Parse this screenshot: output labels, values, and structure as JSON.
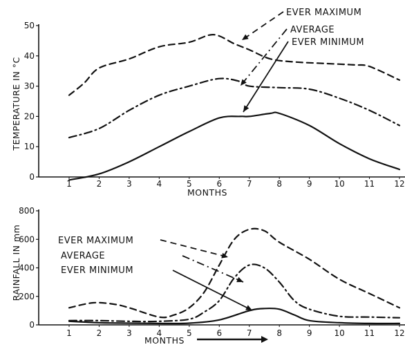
{
  "chart_data": [
    {
      "type": "line",
      "xlabel": "MONTHS",
      "ylabel": "TEMPERATURE IN °C",
      "xlim": [
        1,
        12
      ],
      "ylim": [
        0,
        50
      ],
      "x_ticks": [
        "1",
        "2",
        "3",
        "4",
        "5",
        "6",
        "7",
        "8",
        "9",
        "10",
        "11",
        "12"
      ],
      "y_ticks": [
        "0",
        "10",
        "20",
        "30",
        "40",
        "50"
      ],
      "grid": false,
      "series": [
        {
          "name": "EVER MAXIMUM",
          "style": "dashed",
          "points": [
            [
              1,
              27
            ],
            [
              1.5,
              31
            ],
            [
              2,
              36
            ],
            [
              3,
              39
            ],
            [
              4,
              43
            ],
            [
              5,
              44.5
            ],
            [
              5.8,
              47
            ],
            [
              6.5,
              44
            ],
            [
              7,
              42
            ],
            [
              7.7,
              39
            ],
            [
              8.5,
              38
            ],
            [
              9.5,
              37.5
            ],
            [
              10.5,
              37
            ],
            [
              11,
              36.5
            ],
            [
              12,
              32
            ]
          ]
        },
        {
          "name": "AVERAGE",
          "style": "dashdot",
          "points": [
            [
              1,
              13
            ],
            [
              2,
              16
            ],
            [
              3,
              22
            ],
            [
              4,
              27
            ],
            [
              5,
              30
            ],
            [
              6,
              32.5
            ],
            [
              6.7,
              31.5
            ],
            [
              7,
              30
            ],
            [
              8,
              29.5
            ],
            [
              9,
              29
            ],
            [
              10,
              26
            ],
            [
              11,
              22
            ],
            [
              12,
              17
            ]
          ]
        },
        {
          "name": "EVER MINIMUM",
          "style": "solid",
          "points": [
            [
              1,
              -1
            ],
            [
              2,
              1
            ],
            [
              3,
              5
            ],
            [
              4,
              10
            ],
            [
              5,
              15
            ],
            [
              6,
              19.5
            ],
            [
              6.7,
              20
            ],
            [
              7,
              20
            ],
            [
              7.7,
              21
            ],
            [
              8,
              21
            ],
            [
              9,
              17
            ],
            [
              10,
              11
            ],
            [
              11,
              6
            ],
            [
              12,
              2.5
            ]
          ]
        }
      ]
    },
    {
      "type": "line",
      "xlabel": "MONTHS",
      "ylabel": "RAINFALL IN mm",
      "xlim": [
        1,
        12
      ],
      "ylim": [
        0,
        800
      ],
      "x_ticks": [
        "1",
        "2",
        "3",
        "4",
        "5",
        "6",
        "7",
        "8",
        "9",
        "10",
        "11",
        "12"
      ],
      "y_ticks": [
        "0",
        "200",
        "400",
        "600",
        "800"
      ],
      "grid": false,
      "series": [
        {
          "name": "EVER MAXIMUM",
          "style": "dashed",
          "points": [
            [
              1,
              120
            ],
            [
              1.8,
              155
            ],
            [
              2.5,
              145
            ],
            [
              3,
              120
            ],
            [
              4,
              55
            ],
            [
              4.5,
              70
            ],
            [
              5,
              120
            ],
            [
              5.5,
              230
            ],
            [
              6,
              420
            ],
            [
              6.5,
              600
            ],
            [
              7,
              670
            ],
            [
              7.5,
              660
            ],
            [
              8,
              580
            ],
            [
              9,
              460
            ],
            [
              10,
              320
            ],
            [
              11,
              220
            ],
            [
              12,
              120
            ]
          ]
        },
        {
          "name": "AVERAGE",
          "style": "dashdot",
          "points": [
            [
              1,
              30
            ],
            [
              2,
              30
            ],
            [
              3,
              25
            ],
            [
              4,
              25
            ],
            [
              5,
              40
            ],
            [
              5.5,
              90
            ],
            [
              6,
              170
            ],
            [
              6.5,
              330
            ],
            [
              7,
              420
            ],
            [
              7.5,
              400
            ],
            [
              8,
              300
            ],
            [
              8.5,
              170
            ],
            [
              9,
              110
            ],
            [
              10,
              60
            ],
            [
              11,
              55
            ],
            [
              12,
              50
            ]
          ]
        },
        {
          "name": "EVER MINIMUM",
          "style": "solid",
          "points": [
            [
              1,
              25
            ],
            [
              1.5,
              20
            ],
            [
              2,
              15
            ],
            [
              3,
              12
            ],
            [
              4,
              10
            ],
            [
              5,
              12
            ],
            [
              6,
              35
            ],
            [
              7,
              100
            ],
            [
              7.5,
              115
            ],
            [
              8,
              110
            ],
            [
              8.5,
              70
            ],
            [
              9,
              30
            ],
            [
              10,
              15
            ],
            [
              11,
              10
            ],
            [
              12,
              10
            ]
          ]
        }
      ]
    }
  ]
}
